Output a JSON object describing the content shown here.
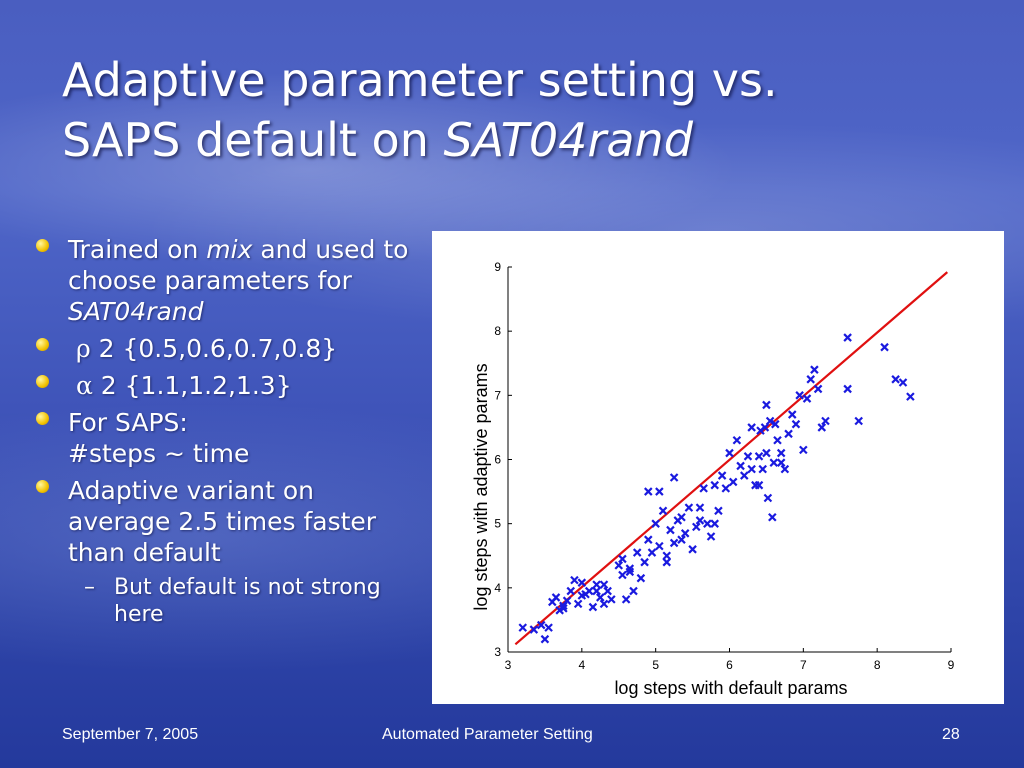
{
  "slide": {
    "title_line1": "Adaptive parameter setting vs.",
    "title_line2_plain": "SAPS default on ",
    "title_line2_ital": "SAT04rand"
  },
  "bullets": {
    "b1_a": "Trained on ",
    "b1_b": "mix",
    "b1_c": " and used to choose parameters for ",
    "b1_d": "SAT04rand",
    "b2_sym": "ρ",
    "b2_text": " 2 {0.5,0.6,0.7,0.8}",
    "b3_sym": "α",
    "b3_text": " 2 {1.1,1.2,1.3}",
    "b4_line1": "For SAPS:",
    "b4_line2": "#steps ~ time",
    "b5": "Adaptive variant on average 2.5 times faster than default",
    "sub_dash": "–",
    "sub1": "But default is not strong here"
  },
  "footer": {
    "date": "September 7, 2005",
    "center": "Automated Parameter Setting",
    "page": "28"
  },
  "colors": {
    "marker": "#1a1adf",
    "line": "#e01010"
  },
  "chart_data": {
    "type": "scatter",
    "xlabel": "log steps with default params",
    "ylabel": "log steps with adaptive params",
    "xlim": [
      3,
      9
    ],
    "ylim": [
      3,
      9
    ],
    "x_ticks": [
      "3",
      "4",
      "5",
      "6",
      "7",
      "8",
      "9"
    ],
    "y_ticks": [
      "3",
      "4",
      "5",
      "6",
      "7",
      "8",
      "9"
    ],
    "reference_line": {
      "x": [
        3.1,
        8.95
      ],
      "y": [
        3.12,
        8.92
      ]
    },
    "points": [
      [
        3.2,
        3.38
      ],
      [
        3.35,
        3.35
      ],
      [
        3.45,
        3.42
      ],
      [
        3.5,
        3.2
      ],
      [
        3.55,
        3.38
      ],
      [
        3.6,
        3.78
      ],
      [
        3.65,
        3.85
      ],
      [
        3.7,
        3.65
      ],
      [
        3.75,
        3.72
      ],
      [
        3.8,
        3.8
      ],
      [
        3.85,
        3.95
      ],
      [
        3.9,
        4.12
      ],
      [
        3.95,
        3.75
      ],
      [
        4.0,
        3.88
      ],
      [
        4.05,
        3.9
      ],
      [
        4.1,
        3.95
      ],
      [
        4.15,
        3.7
      ],
      [
        4.2,
        4.05
      ],
      [
        4.25,
        3.85
      ],
      [
        4.3,
        4.05
      ],
      [
        4.35,
        3.95
      ],
      [
        4.4,
        3.82
      ],
      [
        4.5,
        4.35
      ],
      [
        4.55,
        4.2
      ],
      [
        4.6,
        3.82
      ],
      [
        4.65,
        4.3
      ],
      [
        4.7,
        3.95
      ],
      [
        4.75,
        4.55
      ],
      [
        4.8,
        4.15
      ],
      [
        4.85,
        4.4
      ],
      [
        4.9,
        4.75
      ],
      [
        4.95,
        4.55
      ],
      [
        5.0,
        5.0
      ],
      [
        5.05,
        4.65
      ],
      [
        5.1,
        5.2
      ],
      [
        5.15,
        4.5
      ],
      [
        5.2,
        4.9
      ],
      [
        5.25,
        4.7
      ],
      [
        5.3,
        5.05
      ],
      [
        5.35,
        4.75
      ],
      [
        5.4,
        4.85
      ],
      [
        5.45,
        5.25
      ],
      [
        5.5,
        4.6
      ],
      [
        5.55,
        4.95
      ],
      [
        5.6,
        5.25
      ],
      [
        5.65,
        5.55
      ],
      [
        5.7,
        5.0
      ],
      [
        5.75,
        4.8
      ],
      [
        5.8,
        5.0
      ],
      [
        5.85,
        5.2
      ],
      [
        5.9,
        5.75
      ],
      [
        5.95,
        5.55
      ],
      [
        6.0,
        6.1
      ],
      [
        6.05,
        5.65
      ],
      [
        6.1,
        6.3
      ],
      [
        6.15,
        5.9
      ],
      [
        6.2,
        5.75
      ],
      [
        6.25,
        6.05
      ],
      [
        6.3,
        5.85
      ],
      [
        6.35,
        5.6
      ],
      [
        6.4,
        6.05
      ],
      [
        6.42,
        6.45
      ],
      [
        6.45,
        5.85
      ],
      [
        6.48,
        6.5
      ],
      [
        6.5,
        6.1
      ],
      [
        6.52,
        5.4
      ],
      [
        6.55,
        6.6
      ],
      [
        6.58,
        5.1
      ],
      [
        6.6,
        5.95
      ],
      [
        6.65,
        6.3
      ],
      [
        6.7,
        6.1
      ],
      [
        6.75,
        5.85
      ],
      [
        6.8,
        6.4
      ],
      [
        6.85,
        6.7
      ],
      [
        6.9,
        6.55
      ],
      [
        6.95,
        7.0
      ],
      [
        7.0,
        6.15
      ],
      [
        7.05,
        6.95
      ],
      [
        7.1,
        7.25
      ],
      [
        7.15,
        7.4
      ],
      [
        7.2,
        7.1
      ],
      [
        7.25,
        6.5
      ],
      [
        7.3,
        6.6
      ],
      [
        4.9,
        5.5
      ],
      [
        5.05,
        5.5
      ],
      [
        5.25,
        5.72
      ],
      [
        6.5,
        6.85
      ],
      [
        6.62,
        6.55
      ],
      [
        6.7,
        5.95
      ],
      [
        7.6,
        7.9
      ],
      [
        7.6,
        7.1
      ],
      [
        7.75,
        6.6
      ],
      [
        8.1,
        7.75
      ],
      [
        8.25,
        7.25
      ],
      [
        8.35,
        7.2
      ],
      [
        8.45,
        6.98
      ],
      [
        4.55,
        4.45
      ],
      [
        4.65,
        4.25
      ],
      [
        5.35,
        5.1
      ],
      [
        5.6,
        5.05
      ],
      [
        6.3,
        6.5
      ],
      [
        3.75,
        3.68
      ],
      [
        4.0,
        4.08
      ],
      [
        4.3,
        3.75
      ],
      [
        5.8,
        5.6
      ],
      [
        6.4,
        5.6
      ],
      [
        4.2,
        3.95
      ],
      [
        5.15,
        4.4
      ]
    ]
  }
}
